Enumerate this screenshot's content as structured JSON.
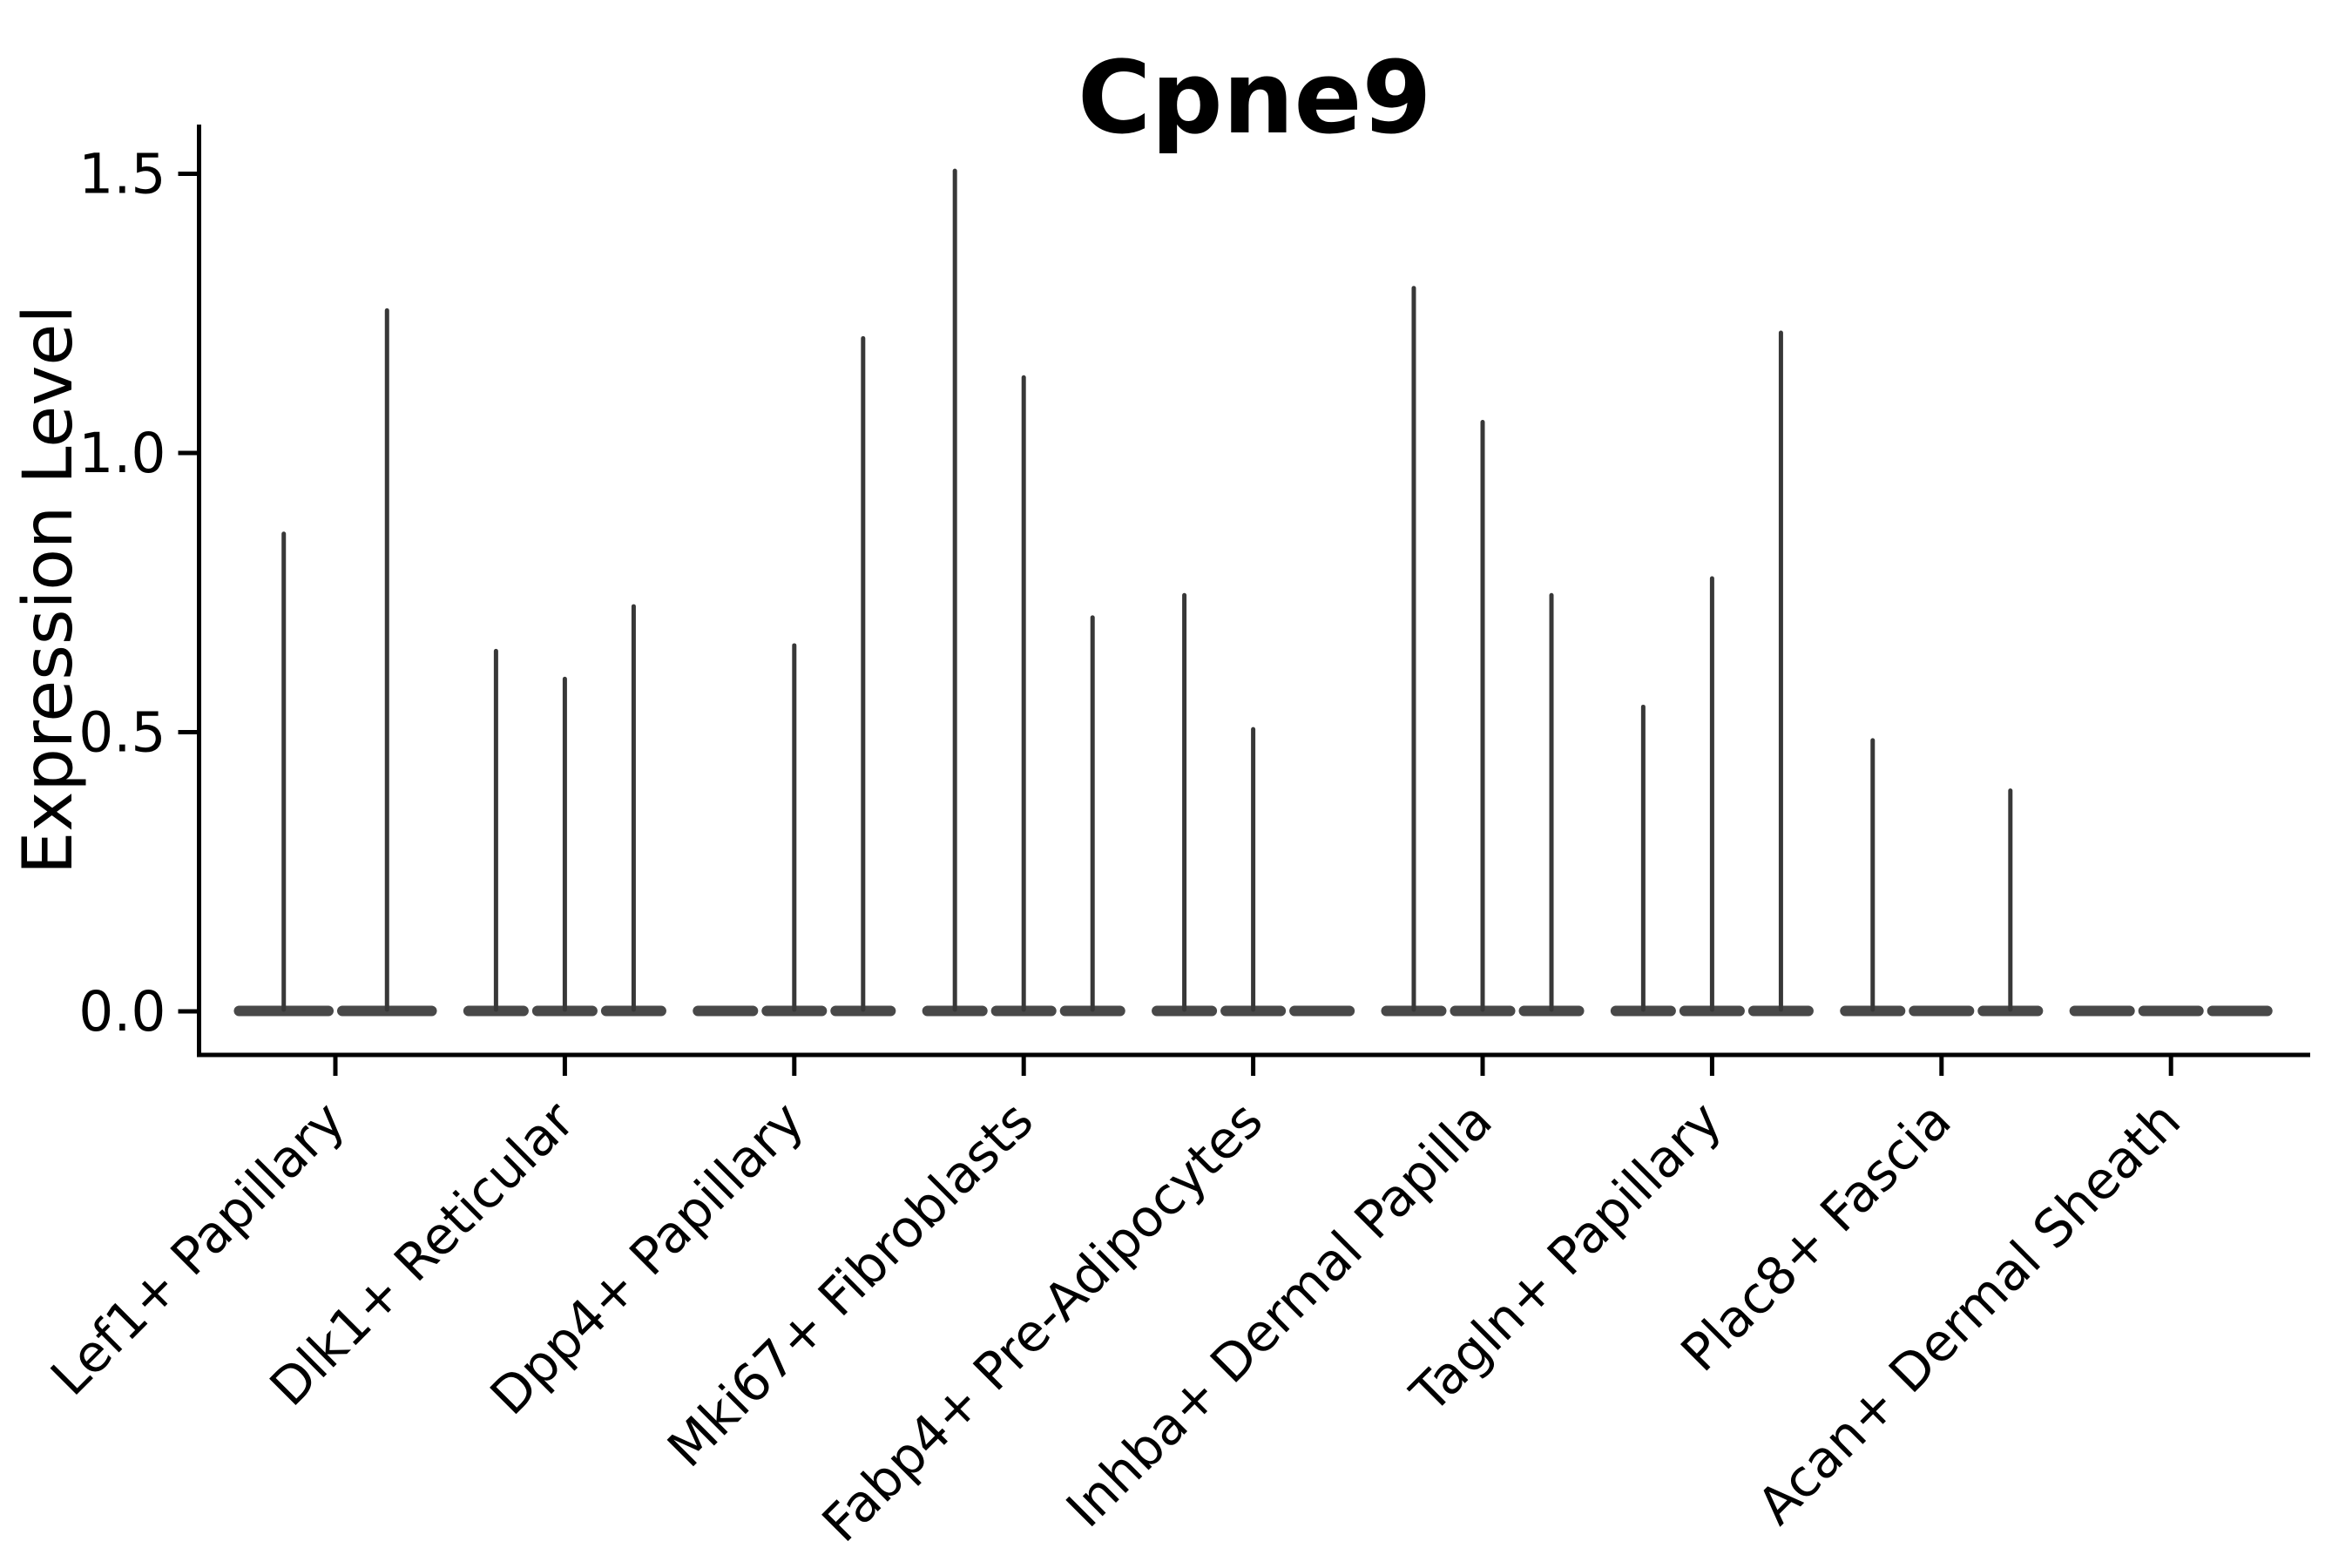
{
  "chart_data": {
    "type": "violin",
    "title": "Cpne9",
    "xlabel": "",
    "ylabel": "Expression Level",
    "ylim": [
      -0.08,
      1.62
    ],
    "yticks": [
      0.0,
      0.5,
      1.0,
      1.5
    ],
    "ytick_labels": [
      "0.0",
      "0.5",
      "1.0",
      "1.5"
    ],
    "legend_position": "none",
    "grid": false,
    "categories": [
      "Lef1+ Papillary",
      "Dlk1+ Reticular",
      "Dpp4+ Papillary",
      "Mki67+ Fibroblasts",
      "Fabp4+ Pre-Adipocytes",
      "Inhba+ Dermal Papilla",
      "Tagln+ Papillary",
      "Plac8+ Fascia",
      "Acan+ Dermal Sheath"
    ],
    "groups": [
      {
        "category": "Lef1+ Papillary",
        "violin_max_expression": [
          0.86,
          1.26
        ]
      },
      {
        "category": "Dlk1+ Reticular",
        "violin_max_expression": [
          0.65,
          0.6,
          0.73
        ]
      },
      {
        "category": "Dpp4+ Papillary",
        "violin_max_expression": [
          0.0,
          0.66,
          1.21
        ]
      },
      {
        "category": "Mki67+ Fibroblasts",
        "violin_max_expression": [
          1.51,
          1.14,
          0.71
        ]
      },
      {
        "category": "Fabp4+ Pre-Adipocytes",
        "violin_max_expression": [
          0.75,
          0.51,
          0.0
        ]
      },
      {
        "category": "Inhba+ Dermal Papilla",
        "violin_max_expression": [
          1.3,
          1.06,
          0.75
        ]
      },
      {
        "category": "Tagln+ Papillary",
        "violin_max_expression": [
          0.55,
          0.78,
          1.22
        ]
      },
      {
        "category": "Plac8+ Fascia",
        "violin_max_expression": [
          0.49,
          0.0,
          0.4
        ]
      },
      {
        "category": "Acan+ Dermal Sheath",
        "violin_max_expression": [
          0.0,
          0.0,
          0.0
        ]
      }
    ],
    "colors": {
      "violin_stroke": "#383838",
      "axis": "#000000",
      "background": "#ffffff"
    }
  }
}
